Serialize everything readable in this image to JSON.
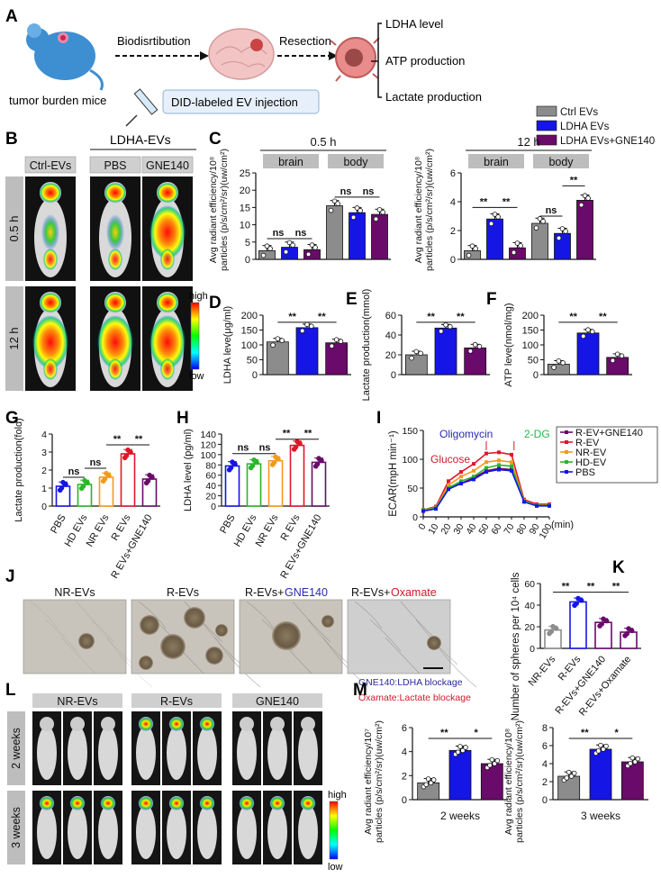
{
  "panel_labels": [
    "A",
    "B",
    "C",
    "D",
    "E",
    "F",
    "G",
    "H",
    "I",
    "J",
    "K",
    "L",
    "M"
  ],
  "panelA": {
    "mouse_label": "tumor burden mice",
    "step1": "Biodisrtibution",
    "step2": "Resection",
    "injection": "DID-labeled EV injection",
    "outcomes": [
      "LDHA level",
      "ATP production",
      "Lactate production"
    ]
  },
  "panelB": {
    "group_header": "LDHA-EVs",
    "columns": [
      "Ctrl-EVs",
      "PBS",
      "GNE140"
    ],
    "rows": [
      "0.5 h",
      "12 h"
    ],
    "scale_high": "high",
    "scale_low": "low"
  },
  "legend_C": {
    "entries": [
      {
        "name": "Ctrl EVs",
        "color": "#8c8c8c"
      },
      {
        "name": "LDHA EVs",
        "color": "#1515e6"
      },
      {
        "name": "LDHA EVs+GNE140",
        "color": "#6a0a6a"
      }
    ]
  },
  "panelC": {
    "ylabel_1": "Avg radiant efficiency/10⁸",
    "ylabel_2": "particles (p/s/cm²/sr)(uw/cm²)",
    "charts": [
      {
        "time": "0.5 h",
        "ylim": [
          0,
          25
        ],
        "yticks": [
          0,
          5,
          10,
          15,
          20,
          25
        ],
        "regions": [
          "brain",
          "body"
        ],
        "brain": [
          2.5,
          3.5,
          2.8
        ],
        "body": [
          15.5,
          13.5,
          13.0
        ],
        "sig": [
          "ns",
          "ns",
          "ns",
          "ns"
        ]
      },
      {
        "time": "12 h",
        "ylim": [
          0,
          6
        ],
        "yticks": [
          0,
          2,
          4,
          6
        ],
        "regions": [
          "brain",
          "body"
        ],
        "brain": [
          0.6,
          2.8,
          0.8
        ],
        "body": [
          2.5,
          1.8,
          4.1
        ],
        "sig": [
          "**",
          "**",
          "ns",
          "**"
        ]
      }
    ]
  },
  "panelD": {
    "ylabel": "LDHA leve(μg/ml)",
    "ylim": [
      0,
      200
    ],
    "yticks": [
      0,
      50,
      100,
      150,
      200
    ],
    "values": [
      110,
      158,
      107
    ],
    "sig": [
      "**",
      "**"
    ]
  },
  "panelE": {
    "ylabel": "Lactate production(mmol)",
    "ylim": [
      0,
      60
    ],
    "yticks": [
      0,
      20,
      40,
      60
    ],
    "values": [
      20,
      47,
      27
    ],
    "sig": [
      "**",
      "**"
    ]
  },
  "panelF": {
    "ylabel": "ATP leve(nmol/mg)",
    "ylim": [
      0,
      200
    ],
    "yticks": [
      0,
      50,
      100,
      150,
      200
    ],
    "values": [
      35,
      140,
      58
    ],
    "sig": [
      "**",
      "**"
    ]
  },
  "panelG": {
    "ylabel": "Lactate production(fold)",
    "ylim": [
      0,
      4
    ],
    "yticks": [
      0,
      1,
      2,
      3,
      4
    ],
    "categories": [
      "PBS",
      "HD EVs",
      "NR EVs",
      "R EVs",
      "R EVs+GNE140"
    ],
    "values": [
      1.1,
      1.2,
      1.6,
      2.9,
      1.5
    ],
    "colors": [
      "#1515e6",
      "#2bb52b",
      "#f39a1c",
      "#e0162b",
      "#6a0a6a"
    ],
    "sig": [
      "ns",
      "ns",
      "**",
      "**"
    ]
  },
  "panelH": {
    "ylabel": "LDHA level (pg/ml)",
    "ylim": [
      0,
      140
    ],
    "yticks": [
      0,
      20,
      40,
      60,
      80,
      100,
      120,
      140
    ],
    "categories": [
      "PBS",
      "HD EVs",
      "NR EVs",
      "R EVs",
      "R EVs+GNE140"
    ],
    "values": [
      78,
      82,
      88,
      118,
      85
    ],
    "colors": [
      "#1515e6",
      "#2bb52b",
      "#f39a1c",
      "#e0162b",
      "#6a0a6a"
    ],
    "sig": [
      "ns",
      "ns",
      "**",
      "**"
    ]
  },
  "panelI": {
    "ylabel": "ECAR(mpH min⁻¹)",
    "xlabel": "(min)",
    "ylim": [
      0,
      150
    ],
    "yticks": [
      0,
      50,
      100,
      150
    ],
    "x": [
      0,
      10,
      20,
      30,
      40,
      50,
      60,
      70,
      80,
      90,
      100
    ],
    "annotations": {
      "glucose": "Glucose",
      "oligomycin": "Oligomycin",
      "twodg": "2-DG"
    },
    "series": [
      {
        "name": "R-EV+GNE140",
        "color": "#6a0a6a",
        "values": [
          12,
          16,
          52,
          58,
          68,
          80,
          84,
          82,
          28,
          20,
          20
        ]
      },
      {
        "name": "R-EV",
        "color": "#e0162b",
        "values": [
          12,
          18,
          62,
          78,
          92,
          110,
          112,
          108,
          30,
          22,
          22
        ]
      },
      {
        "name": "NR-EV",
        "color": "#f39a1c",
        "values": [
          12,
          16,
          55,
          70,
          80,
          95,
          98,
          95,
          28,
          20,
          20
        ]
      },
      {
        "name": "HD-EV",
        "color": "#2bb52b",
        "values": [
          12,
          15,
          50,
          62,
          70,
          85,
          90,
          88,
          27,
          20,
          20
        ]
      },
      {
        "name": "PBS",
        "color": "#1515e6",
        "values": [
          10,
          14,
          48,
          58,
          65,
          78,
          82,
          80,
          26,
          19,
          19
        ]
      }
    ]
  },
  "panelJ": {
    "titles": [
      "NR-EVs",
      "R-EVs",
      "R-EVs+",
      "R-EVs+"
    ],
    "title_blue": "GNE140",
    "title_red": "Oxamate",
    "note_blue": "GNE140:LDHA blockage",
    "note_red": "Oxamate:Lactate blockage"
  },
  "panelK": {
    "ylabel": "Number of spheres per 10⁴ cells",
    "ylim": [
      0,
      60
    ],
    "yticks": [
      0,
      20,
      40,
      60
    ],
    "categories": [
      "NR-EVs",
      "R-EVs",
      "R-EVs+GNE140",
      "R-EVs+Oxamate"
    ],
    "values": [
      17,
      43,
      24,
      15
    ],
    "colors": [
      "#8c8c8c",
      "#1515e6",
      "#6a0a6a",
      "#6a0a6a"
    ],
    "sig": [
      "**",
      "**",
      "**"
    ]
  },
  "panelL": {
    "groups": [
      "NR-EVs",
      "R-EVs",
      "GNE140"
    ],
    "rows": [
      "2 weeks",
      "3 weeks"
    ],
    "scale_high": "high",
    "scale_low": "low"
  },
  "panelM": {
    "charts": [
      {
        "ylabel_1": "Avg radiant efficiency/10⁷",
        "ylabel_2": "particles (p/s/cm²/sr)(uw/cm²)",
        "xlabel": "2 weeks",
        "ylim": [
          0,
          6
        ],
        "yticks": [
          0,
          2,
          4,
          6
        ],
        "values": [
          1.4,
          4.1,
          3.0
        ],
        "sig": [
          "**",
          "*"
        ]
      },
      {
        "ylabel_1": "Avg radiant efficiency/10⁸",
        "ylabel_2": "particles (p/s/cm²/sr)(uw/cm²)",
        "xlabel": "3 weeks",
        "ylim": [
          0,
          8
        ],
        "yticks": [
          0,
          2,
          4,
          6,
          8
        ],
        "values": [
          2.6,
          5.6,
          4.2
        ],
        "sig": [
          "**",
          "*"
        ]
      }
    ],
    "colors": [
      "#8c8c8c",
      "#1515e6",
      "#6a0a6a"
    ]
  }
}
